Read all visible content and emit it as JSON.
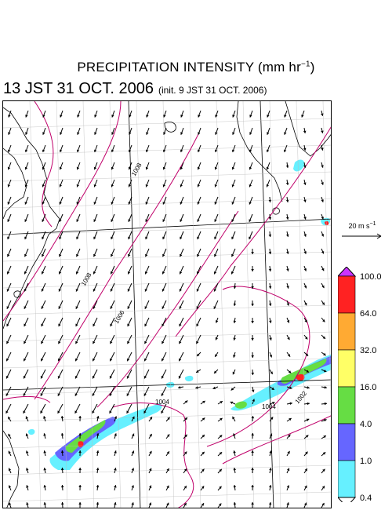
{
  "title": {
    "main": "PRECIPITATION INTENSITY (mm hr",
    "exp": "−1",
    "close": ")"
  },
  "valid_time": "13 JST 31 OCT. 2006",
  "init_time": "(init. 9 JST 31 OCT. 2006)",
  "reference_vector": {
    "label": "20 m s",
    "exp": "−1",
    "speed": 20
  },
  "colorbar": {
    "levels": [
      "0.4",
      "1.0",
      "4.0",
      "16.0",
      "32.0",
      "64.0",
      "100.0"
    ],
    "colors": [
      "#66f0ff",
      "#6666ff",
      "#66dd44",
      "#ffff66",
      "#ffaa33",
      "#ff2222"
    ],
    "overflow_color": "#cc33ff",
    "underflow_color": "#ffffff"
  },
  "contour_labels": [
    "1008",
    "1008",
    "1006",
    "1004",
    "1004",
    "1002"
  ],
  "colors": {
    "isobar": "#c0006a",
    "coast": "#000000",
    "grid": "#999999"
  }
}
